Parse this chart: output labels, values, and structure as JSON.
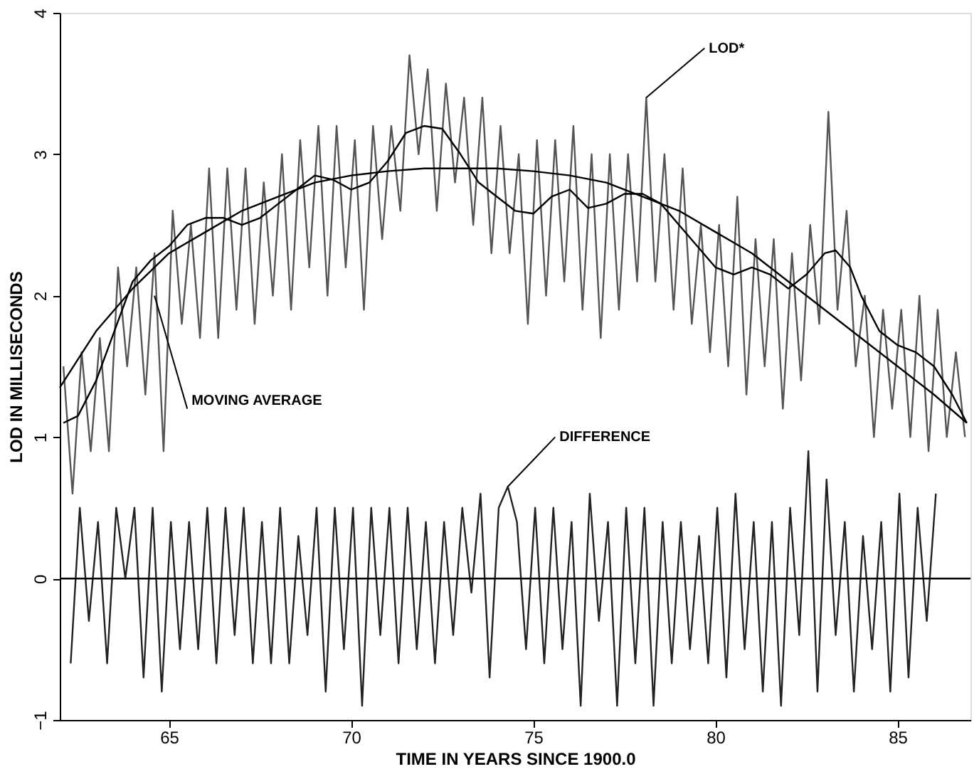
{
  "chart_data": {
    "type": "line",
    "xlabel": "TIME IN YEARS SINCE 1900.0",
    "ylabel": "LOD IN MILLISECONDS",
    "xlim": [
      62,
      87
    ],
    "xticks": [
      65,
      70,
      75,
      80,
      85
    ],
    "ylim": [
      -1,
      4
    ],
    "yticks": [
      -1,
      0,
      1,
      2,
      3,
      4
    ],
    "grid": false,
    "ref_lines": [
      {
        "axis": "y",
        "value": 0,
        "color": "#000000"
      }
    ],
    "annotations": [
      {
        "text": "LOD*",
        "x": 78.1,
        "y": 3.4
      },
      {
        "text": "MOVING AVERAGE",
        "x": 64.6,
        "y": 2.0
      },
      {
        "text": "DIFFERENCE",
        "x": 74.3,
        "y": 0.65
      }
    ],
    "series": [
      {
        "color": "#555555",
        "x": [
          62.1,
          62.35,
          62.6,
          62.85,
          63.1,
          63.35,
          63.6,
          63.85,
          64.1,
          64.35,
          64.6,
          64.85,
          65.1,
          65.35,
          65.6,
          65.85,
          66.1,
          66.35,
          66.6,
          66.85,
          67.1,
          67.35,
          67.6,
          67.85,
          68.1,
          68.35,
          68.6,
          68.85,
          69.1,
          69.35,
          69.6,
          69.85,
          70.1,
          70.35,
          70.6,
          70.85,
          71.1,
          71.35,
          71.6,
          71.85,
          72.1,
          72.35,
          72.6,
          72.85,
          73.1,
          73.35,
          73.6,
          73.85,
          74.1,
          74.35,
          74.6,
          74.85,
          75.1,
          75.35,
          75.6,
          75.85,
          76.1,
          76.35,
          76.6,
          76.85,
          77.1,
          77.35,
          77.6,
          77.85,
          78.1,
          78.35,
          78.6,
          78.85,
          79.1,
          79.35,
          79.6,
          79.85,
          80.1,
          80.35,
          80.6,
          80.85,
          81.1,
          81.35,
          81.6,
          81.85,
          82.1,
          82.35,
          82.6,
          82.85,
          83.1,
          83.35,
          83.6,
          83.85,
          84.1,
          84.35,
          84.6,
          84.85,
          85.1,
          85.35,
          85.6,
          85.85,
          86.1,
          86.35,
          86.6,
          86.85
        ],
        "values": [
          1.5,
          0.6,
          1.6,
          0.9,
          1.7,
          0.9,
          2.2,
          1.5,
          2.2,
          1.3,
          2.3,
          0.9,
          2.6,
          1.8,
          2.5,
          1.7,
          2.9,
          1.7,
          2.9,
          1.9,
          2.9,
          1.8,
          2.8,
          2.0,
          3.0,
          1.9,
          3.1,
          2.2,
          3.2,
          2.0,
          3.2,
          2.2,
          3.1,
          1.9,
          3.2,
          2.4,
          3.2,
          2.6,
          3.7,
          3.0,
          3.6,
          2.6,
          3.5,
          2.8,
          3.4,
          2.5,
          3.4,
          2.3,
          3.2,
          2.3,
          3.0,
          1.8,
          3.1,
          2.0,
          3.1,
          2.1,
          3.2,
          1.9,
          3.0,
          1.7,
          3.0,
          1.9,
          3.0,
          2.1,
          3.4,
          2.1,
          3.0,
          1.9,
          2.9,
          1.8,
          2.5,
          1.6,
          2.5,
          1.5,
          2.7,
          1.3,
          2.4,
          1.5,
          2.4,
          1.2,
          2.3,
          1.4,
          2.5,
          1.8,
          3.3,
          1.9,
          2.6,
          1.5,
          2.0,
          1.0,
          1.9,
          1.2,
          1.9,
          1.0,
          2.0,
          0.9,
          1.9,
          1.0,
          1.6,
          1.0
        ]
      },
      {
        "color": "#000000",
        "x": [
          62.1,
          62.5,
          63,
          63.5,
          64,
          64.5,
          65,
          65.5,
          66,
          66.5,
          67,
          67.5,
          68,
          68.5,
          69,
          69.5,
          70,
          70.5,
          71,
          71.5,
          72,
          72.5,
          73,
          73.5,
          74,
          74.5,
          75,
          75.5,
          76,
          76.5,
          77,
          77.5,
          78,
          78.5,
          79,
          79.5,
          80,
          80.5,
          81,
          81.5,
          82,
          82.5,
          83,
          83.3,
          83.7,
          84,
          84.5,
          85,
          85.5,
          86,
          86.5,
          86.9
        ],
        "values": [
          1.1,
          1.15,
          1.4,
          1.75,
          2.1,
          2.25,
          2.35,
          2.5,
          2.55,
          2.55,
          2.5,
          2.55,
          2.65,
          2.75,
          2.85,
          2.82,
          2.75,
          2.8,
          2.95,
          3.15,
          3.2,
          3.18,
          3.0,
          2.8,
          2.7,
          2.6,
          2.58,
          2.7,
          2.75,
          2.62,
          2.65,
          2.72,
          2.72,
          2.65,
          2.5,
          2.35,
          2.2,
          2.15,
          2.2,
          2.15,
          2.05,
          2.15,
          2.3,
          2.32,
          2.2,
          2.0,
          1.75,
          1.65,
          1.6,
          1.5,
          1.3,
          1.1
        ]
      },
      {
        "color": "#000000",
        "x": [
          62,
          63,
          64,
          65,
          66,
          67,
          68,
          69,
          70,
          71,
          72,
          73,
          74,
          75,
          76,
          77,
          78,
          79,
          80,
          81,
          82,
          83,
          84,
          85,
          86,
          86.9
        ],
        "values": [
          1.35,
          1.75,
          2.05,
          2.3,
          2.45,
          2.6,
          2.7,
          2.8,
          2.85,
          2.88,
          2.9,
          2.9,
          2.9,
          2.88,
          2.85,
          2.8,
          2.7,
          2.6,
          2.45,
          2.3,
          2.1,
          1.9,
          1.7,
          1.5,
          1.3,
          1.1
        ]
      },
      {
        "color": "#222222",
        "x": [
          62.3,
          62.55,
          62.8,
          63.05,
          63.3,
          63.55,
          63.8,
          64.05,
          64.3,
          64.55,
          64.8,
          65.05,
          65.3,
          65.55,
          65.8,
          66.05,
          66.3,
          66.55,
          66.8,
          67.05,
          67.3,
          67.55,
          67.8,
          68.05,
          68.3,
          68.55,
          68.8,
          69.05,
          69.3,
          69.55,
          69.8,
          70.05,
          70.3,
          70.55,
          70.8,
          71.05,
          71.3,
          71.55,
          71.8,
          72.05,
          72.3,
          72.55,
          72.8,
          73.05,
          73.3,
          73.55,
          73.8,
          74.05,
          74.3,
          74.55,
          74.8,
          75.05,
          75.3,
          75.55,
          75.8,
          76.05,
          76.3,
          76.55,
          76.8,
          77.05,
          77.3,
          77.55,
          77.8,
          78.05,
          78.3,
          78.55,
          78.8,
          79.05,
          79.3,
          79.55,
          79.8,
          80.05,
          80.3,
          80.55,
          80.8,
          81.05,
          81.3,
          81.55,
          81.8,
          82.05,
          82.3,
          82.55,
          82.8,
          83.05,
          83.3,
          83.55,
          83.8,
          84.05,
          84.3,
          84.55,
          84.8,
          85.05,
          85.3,
          85.55,
          85.8,
          86.05
        ],
        "values": [
          -0.6,
          0.5,
          -0.3,
          0.4,
          -0.6,
          0.5,
          0.0,
          0.5,
          -0.7,
          0.5,
          -0.8,
          0.4,
          -0.5,
          0.4,
          -0.5,
          0.5,
          -0.6,
          0.5,
          -0.4,
          0.5,
          -0.6,
          0.4,
          -0.6,
          0.5,
          -0.6,
          0.3,
          -0.4,
          0.5,
          -0.8,
          0.5,
          -0.5,
          0.5,
          -0.9,
          0.5,
          -0.4,
          0.5,
          -0.6,
          0.5,
          -0.5,
          0.4,
          -0.6,
          0.4,
          -0.4,
          0.5,
          -0.1,
          0.6,
          -0.7,
          0.5,
          0.65,
          0.4,
          -0.5,
          0.5,
          -0.6,
          0.5,
          -0.5,
          0.4,
          -0.9,
          0.6,
          -0.3,
          0.4,
          -0.9,
          0.5,
          -0.6,
          0.5,
          -0.9,
          0.4,
          -0.6,
          0.4,
          -0.5,
          0.3,
          -0.6,
          0.5,
          -0.7,
          0.6,
          -0.5,
          0.4,
          -0.8,
          0.4,
          -0.9,
          0.5,
          -0.4,
          0.9,
          -0.8,
          0.7,
          -0.4,
          0.4,
          -0.8,
          0.3,
          -0.5,
          0.4,
          -0.8,
          0.6,
          -0.7,
          0.5,
          -0.3,
          0.6
        ]
      }
    ]
  }
}
